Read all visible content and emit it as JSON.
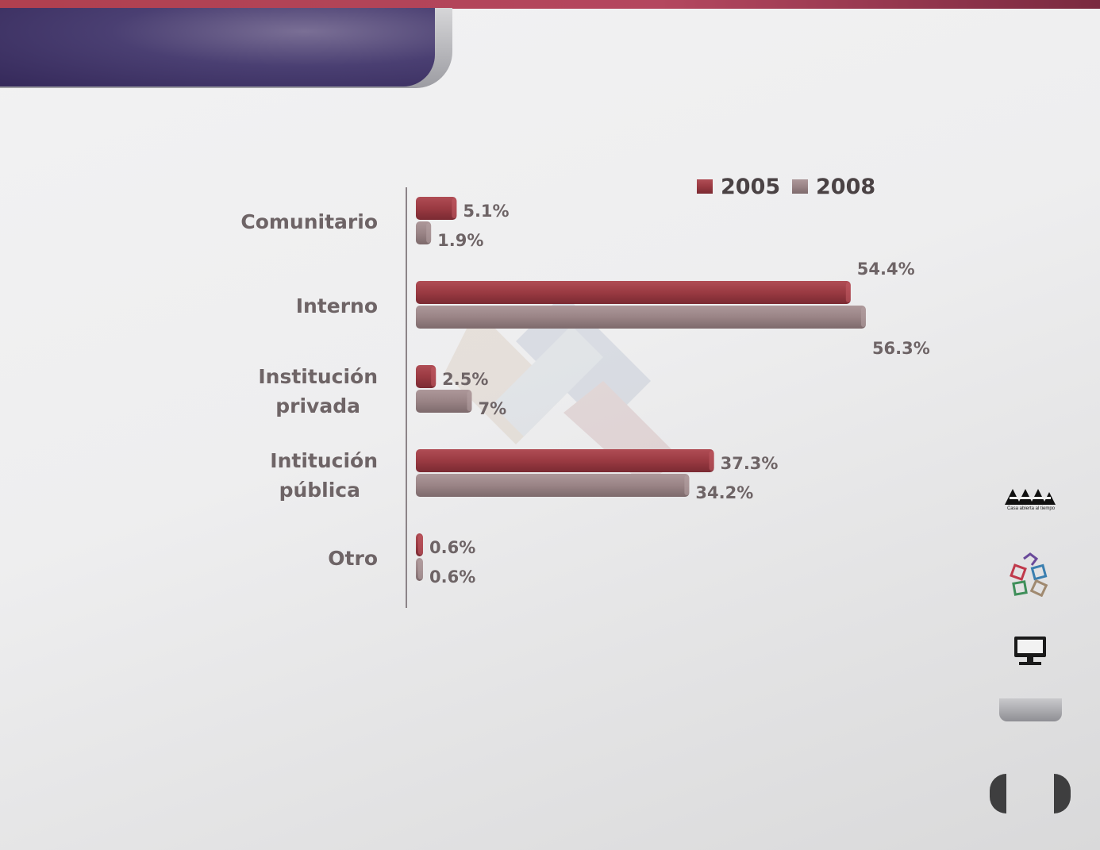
{
  "colors": {
    "series_2005": "#9a3a42",
    "series_2008": "#9a8486",
    "header_banner": "#3f3468",
    "top_strip": "#b0404f"
  },
  "branding": {
    "logo_caption": "Casa abierta al tiempo"
  },
  "icons": [
    "uam-logo-icon",
    "puzzle-icon",
    "monitor-icon"
  ],
  "chart_data": {
    "type": "bar",
    "orientation": "horizontal",
    "categories": [
      "Comunitario",
      "Interno",
      "Institución privada",
      "Intitución pública",
      "Otro"
    ],
    "series": [
      {
        "name": "2005",
        "values": [
          5.1,
          54.4,
          2.5,
          37.3,
          0.6
        ],
        "labels": [
          "5.1%",
          "54.4%",
          "2.5%",
          "37.3%",
          "0.6%"
        ]
      },
      {
        "name": "2008",
        "values": [
          1.9,
          56.3,
          7,
          34.2,
          0.6
        ],
        "labels": [
          "1.9%",
          "56.3%",
          "7%",
          "34.2%",
          "0.6%"
        ]
      }
    ],
    "unit": "%",
    "legend_position": "top-right",
    "grid": false
  }
}
